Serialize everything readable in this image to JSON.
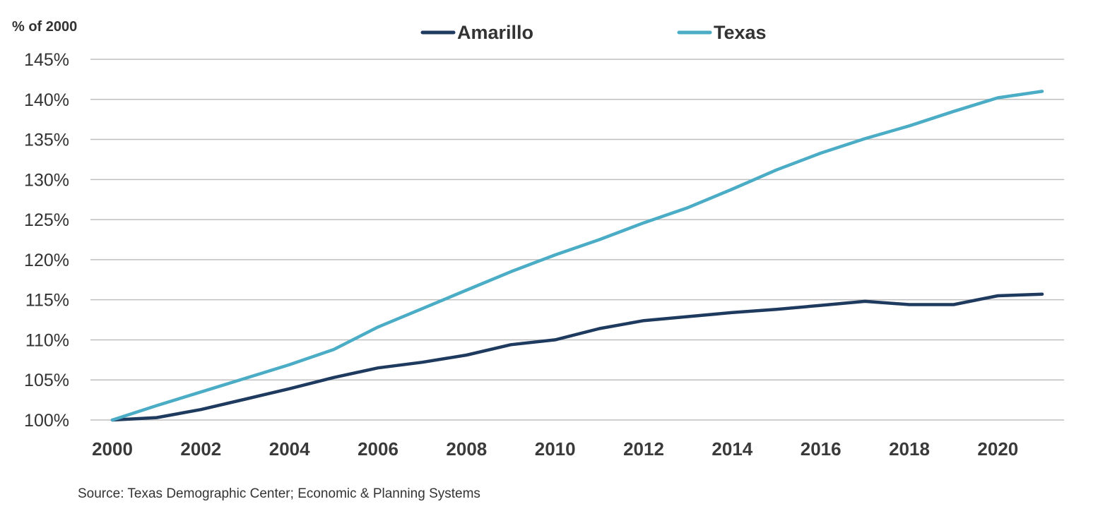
{
  "chart_data": {
    "type": "line",
    "ylabel": "% of 2000",
    "x": [
      2000,
      2001,
      2002,
      2003,
      2004,
      2005,
      2006,
      2007,
      2008,
      2009,
      2010,
      2011,
      2012,
      2013,
      2014,
      2015,
      2016,
      2017,
      2018,
      2019,
      2020,
      2021
    ],
    "series": [
      {
        "name": "Amarillo",
        "color": "#1f3a5f",
        "values": [
          100.0,
          100.3,
          101.3,
          102.6,
          103.9,
          105.3,
          106.5,
          107.2,
          108.1,
          109.4,
          110.0,
          111.4,
          112.4,
          112.9,
          113.4,
          113.8,
          114.3,
          114.8,
          114.4,
          114.4,
          115.5,
          115.7
        ]
      },
      {
        "name": "Texas",
        "color": "#4bacc6",
        "values": [
          100.0,
          101.8,
          103.5,
          105.2,
          106.9,
          108.8,
          111.6,
          113.9,
          116.2,
          118.5,
          120.6,
          122.5,
          124.6,
          126.5,
          128.8,
          131.2,
          133.3,
          135.1,
          136.7,
          138.5,
          140.2,
          141.0
        ]
      }
    ],
    "ylim": [
      100,
      145
    ],
    "yticks": [
      "100%",
      "105%",
      "110%",
      "115%",
      "120%",
      "125%",
      "130%",
      "135%",
      "140%",
      "145%"
    ],
    "xticks": [
      "2000",
      "2002",
      "2004",
      "2006",
      "2008",
      "2010",
      "2012",
      "2014",
      "2016",
      "2018",
      "2020"
    ],
    "grid": "horizontal",
    "legend": "top-center"
  },
  "source": "Source: Texas Demographic Center; Economic & Planning Systems"
}
